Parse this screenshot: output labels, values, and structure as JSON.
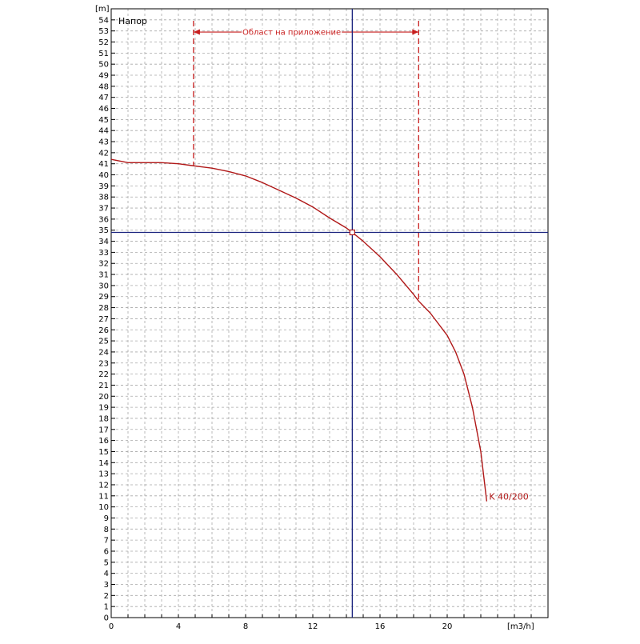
{
  "chart_data": {
    "type": "line",
    "title": "Напор",
    "xlabel": "[m3/h]",
    "ylabel": "[m]",
    "xlim": [
      0,
      26
    ],
    "ylim": [
      0,
      55
    ],
    "x_ticks": [
      0,
      4,
      8,
      12,
      16,
      20
    ],
    "y_ticks": [
      0,
      1,
      2,
      3,
      4,
      5,
      6,
      7,
      8,
      9,
      10,
      11,
      12,
      13,
      14,
      15,
      16,
      17,
      18,
      19,
      20,
      21,
      22,
      23,
      24,
      25,
      26,
      27,
      28,
      29,
      30,
      31,
      32,
      33,
      34,
      35,
      36,
      37,
      38,
      39,
      40,
      41,
      42,
      43,
      44,
      45,
      46,
      47,
      48,
      49,
      50,
      51,
      52,
      53,
      54
    ],
    "x_minor_step": 1,
    "y_minor_step": 1,
    "grid": true,
    "series": [
      {
        "name": "K 40/200",
        "color": "#b01818",
        "x": [
          0,
          1,
          2,
          3,
          4,
          5,
          6,
          7,
          8,
          9,
          10,
          11,
          12,
          13,
          14,
          14.35,
          15,
          16,
          17,
          18,
          18.3,
          19,
          20,
          20.5,
          21,
          21.5,
          22,
          22.35
        ],
        "y": [
          41.4,
          41.1,
          41.1,
          41.1,
          41.0,
          40.8,
          40.6,
          40.3,
          39.9,
          39.3,
          38.6,
          37.9,
          37.1,
          36.1,
          35.2,
          34.8,
          34.0,
          32.6,
          31.0,
          29.2,
          28.6,
          27.5,
          25.5,
          24.0,
          22.0,
          19.0,
          15.0,
          10.5
        ]
      }
    ],
    "operating_point": {
      "x": 14.35,
      "y": 34.8,
      "color": "#1a237e"
    },
    "application_range": {
      "label": "Област на приложение",
      "x_min": 4.9,
      "x_max": 18.3,
      "y_level": 52.9,
      "color": "#c81e1e"
    }
  }
}
